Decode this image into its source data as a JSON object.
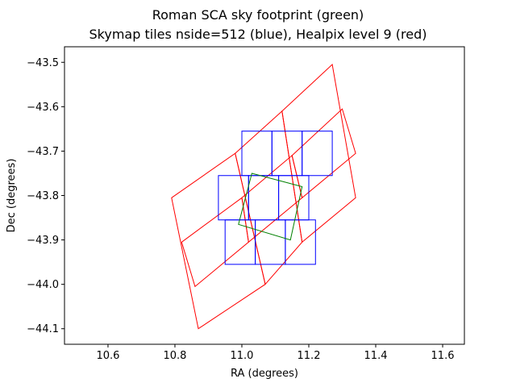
{
  "chart_data": {
    "type": "line",
    "title": "Roman SCA sky footprint (green)",
    "subtitle": "Skymap tiles nside=512 (blue), Healpix level 9 (red)",
    "xlabel": "RA (degrees)",
    "ylabel": "Dec (degrees)",
    "xlim": [
      10.47,
      11.665
    ],
    "ylim": [
      -44.135,
      -43.465
    ],
    "xticks": [
      {
        "value": 10.6,
        "label": "10.6"
      },
      {
        "value": 10.8,
        "label": "10.8"
      },
      {
        "value": 11.0,
        "label": "11.0"
      },
      {
        "value": 11.2,
        "label": "11.2"
      },
      {
        "value": 11.4,
        "label": "11.4"
      },
      {
        "value": 11.6,
        "label": "11.6"
      }
    ],
    "yticks": [
      {
        "value": -43.5,
        "label": "−43.5"
      },
      {
        "value": -43.6,
        "label": "−43.6"
      },
      {
        "value": -43.7,
        "label": "−43.7"
      },
      {
        "value": -43.8,
        "label": "−43.8"
      },
      {
        "value": -43.9,
        "label": "−43.9"
      },
      {
        "value": -44.0,
        "label": "−44.0"
      },
      {
        "value": -44.1,
        "label": "−44.1"
      }
    ],
    "grid": false,
    "series": [
      {
        "color": "#ff0000",
        "polygons": [
          {
            "ra": [
              10.79,
              10.98,
              11.07,
              10.87
            ],
            "dec": [
              -43.805,
              -43.705,
              -44.0,
              -44.1
            ]
          },
          {
            "ra": [
              10.98,
              11.12,
              11.18,
              11.07
            ],
            "dec": [
              -43.705,
              -43.61,
              -43.905,
              -44.0
            ]
          },
          {
            "ra": [
              11.12,
              11.27,
              11.34,
              11.18
            ],
            "dec": [
              -43.61,
              -43.505,
              -43.805,
              -43.905
            ]
          },
          {
            "ra": [
              10.82,
              11.0,
              11.02,
              10.86
            ],
            "dec": [
              -43.905,
              -43.805,
              -43.905,
              -44.005
            ]
          },
          {
            "ra": [
              11.0,
              11.15,
              11.18,
              11.02
            ],
            "dec": [
              -43.805,
              -43.71,
              -43.805,
              -43.905
            ]
          },
          {
            "ra": [
              11.15,
              11.3,
              11.34,
              11.18
            ],
            "dec": [
              -43.71,
              -43.605,
              -43.705,
              -43.805
            ]
          }
        ]
      },
      {
        "color": "#0000ff",
        "polygons": [
          {
            "ra": [
              11.0,
              11.09,
              11.09,
              11.0
            ],
            "dec": [
              -43.655,
              -43.655,
              -43.755,
              -43.755
            ]
          },
          {
            "ra": [
              11.09,
              11.18,
              11.18,
              11.09
            ],
            "dec": [
              -43.655,
              -43.655,
              -43.755,
              -43.755
            ]
          },
          {
            "ra": [
              11.18,
              11.27,
              11.27,
              11.18
            ],
            "dec": [
              -43.655,
              -43.655,
              -43.755,
              -43.755
            ]
          },
          {
            "ra": [
              10.93,
              11.02,
              11.02,
              10.93
            ],
            "dec": [
              -43.755,
              -43.755,
              -43.855,
              -43.855
            ]
          },
          {
            "ra": [
              11.02,
              11.11,
              11.11,
              11.02
            ],
            "dec": [
              -43.755,
              -43.755,
              -43.855,
              -43.855
            ]
          },
          {
            "ra": [
              11.11,
              11.2,
              11.2,
              11.11
            ],
            "dec": [
              -43.755,
              -43.755,
              -43.855,
              -43.855
            ]
          },
          {
            "ra": [
              10.95,
              11.04,
              11.04,
              10.95
            ],
            "dec": [
              -43.855,
              -43.855,
              -43.955,
              -43.955
            ]
          },
          {
            "ra": [
              11.04,
              11.13,
              11.13,
              11.04
            ],
            "dec": [
              -43.855,
              -43.855,
              -43.955,
              -43.955
            ]
          },
          {
            "ra": [
              11.13,
              11.22,
              11.22,
              11.13
            ],
            "dec": [
              -43.855,
              -43.855,
              -43.955,
              -43.955
            ]
          }
        ]
      },
      {
        "color": "#008000",
        "polygons": [
          {
            "ra": [
              11.03,
              11.18,
              11.145,
              10.99
            ],
            "dec": [
              -43.75,
              -43.78,
              -43.9,
              -43.865
            ]
          }
        ]
      }
    ]
  }
}
